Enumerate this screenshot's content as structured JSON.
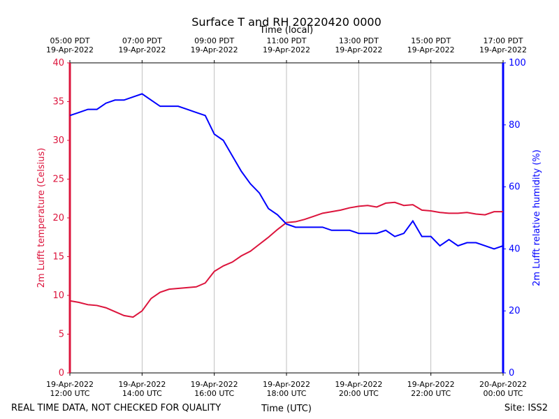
{
  "chart_data": {
    "type": "line",
    "title": "Surface T and RH 20220420 0000",
    "x_label": "Time (UTC)",
    "x2_label": "Time (local)",
    "y_label": "2m Lufft temperature (Celsius)",
    "y2_label": "2m Lufft relative humidity (%)",
    "footer_left": "REAL TIME DATA, NOT CHECKED FOR QUALITY",
    "footer_right": "Site: ISS2",
    "x": [
      "2022-04-19T12:00",
      "2022-04-19T12:15",
      "2022-04-19T12:30",
      "2022-04-19T12:45",
      "2022-04-19T13:00",
      "2022-04-19T13:15",
      "2022-04-19T13:30",
      "2022-04-19T13:45",
      "2022-04-19T14:00",
      "2022-04-19T14:15",
      "2022-04-19T14:30",
      "2022-04-19T14:45",
      "2022-04-19T15:00",
      "2022-04-19T15:15",
      "2022-04-19T15:30",
      "2022-04-19T15:45",
      "2022-04-19T16:00",
      "2022-04-19T16:15",
      "2022-04-19T16:30",
      "2022-04-19T16:45",
      "2022-04-19T17:00",
      "2022-04-19T17:15",
      "2022-04-19T17:30",
      "2022-04-19T17:45",
      "2022-04-19T18:00",
      "2022-04-19T18:15",
      "2022-04-19T18:30",
      "2022-04-19T18:45",
      "2022-04-19T19:00",
      "2022-04-19T19:15",
      "2022-04-19T19:30",
      "2022-04-19T19:45",
      "2022-04-19T20:00",
      "2022-04-19T20:15",
      "2022-04-19T20:30",
      "2022-04-19T20:45",
      "2022-04-19T21:00",
      "2022-04-19T21:15",
      "2022-04-19T21:30",
      "2022-04-19T21:45",
      "2022-04-19T22:00",
      "2022-04-19T22:15",
      "2022-04-19T22:30",
      "2022-04-19T22:45",
      "2022-04-19T23:00",
      "2022-04-19T23:15",
      "2022-04-19T23:30",
      "2022-04-19T23:45",
      "2022-04-20T00:00"
    ],
    "series": [
      {
        "name": "2m Lufft temperature",
        "color": "#dc143c",
        "axis": "y",
        "values": [
          9.3,
          9.1,
          8.8,
          8.7,
          8.4,
          7.9,
          7.4,
          7.2,
          8.0,
          9.6,
          10.4,
          10.8,
          10.9,
          11.0,
          11.1,
          11.6,
          13.1,
          13.8,
          14.3,
          15.1,
          15.7,
          16.6,
          17.5,
          18.5,
          19.4,
          19.5,
          19.8,
          20.2,
          20.6,
          20.8,
          21.0,
          21.3,
          21.5,
          21.6,
          21.4,
          21.9,
          22.0,
          21.6,
          21.7,
          21.0,
          20.9,
          20.7,
          20.6,
          20.6,
          20.7,
          20.5,
          20.4,
          20.8,
          20.8
        ]
      },
      {
        "name": "2m Lufft relative humidity",
        "color": "#0000ff",
        "axis": "y2",
        "values": [
          83,
          84,
          85,
          85,
          87,
          88,
          88,
          89,
          90,
          88,
          86,
          86,
          86,
          85,
          84,
          83,
          77,
          75,
          70,
          65,
          61,
          58,
          53,
          51,
          48,
          47,
          47,
          47,
          47,
          46,
          46,
          46,
          45,
          45,
          45,
          46,
          44,
          45,
          49,
          44,
          44,
          41,
          43,
          41,
          42,
          42,
          41,
          40,
          41
        ]
      }
    ],
    "xlim": [
      "2022-04-19T12:00",
      "2022-04-20T00:00"
    ],
    "xticks": [
      {
        "value": "2022-04-19T12:00",
        "label": "19-Apr-2022\n12:00 UTC"
      },
      {
        "value": "2022-04-19T14:00",
        "label": "19-Apr-2022\n14:00 UTC"
      },
      {
        "value": "2022-04-19T16:00",
        "label": "19-Apr-2022\n16:00 UTC"
      },
      {
        "value": "2022-04-19T18:00",
        "label": "19-Apr-2022\n18:00 UTC"
      },
      {
        "value": "2022-04-19T20:00",
        "label": "19-Apr-2022\n20:00 UTC"
      },
      {
        "value": "2022-04-19T22:00",
        "label": "19-Apr-2022\n22:00 UTC"
      },
      {
        "value": "2022-04-20T00:00",
        "label": "20-Apr-2022\n00:00 UTC"
      }
    ],
    "x2ticks": [
      {
        "value": "2022-04-19T12:00",
        "label": "05:00 PDT\n19-Apr-2022"
      },
      {
        "value": "2022-04-19T14:00",
        "label": "07:00 PDT\n19-Apr-2022"
      },
      {
        "value": "2022-04-19T16:00",
        "label": "09:00 PDT\n19-Apr-2022"
      },
      {
        "value": "2022-04-19T18:00",
        "label": "11:00 PDT\n19-Apr-2022"
      },
      {
        "value": "2022-04-19T20:00",
        "label": "13:00 PDT\n19-Apr-2022"
      },
      {
        "value": "2022-04-19T22:00",
        "label": "15:00 PDT\n19-Apr-2022"
      },
      {
        "value": "2022-04-20T00:00",
        "label": "17:00 PDT\n19-Apr-2022"
      }
    ],
    "ylim": [
      0,
      40
    ],
    "yticks": [
      0,
      5,
      10,
      15,
      20,
      25,
      30,
      35,
      40
    ],
    "y2lim": [
      0,
      100
    ],
    "y2ticks": [
      0,
      20,
      40,
      60,
      80,
      100
    ],
    "grid": "x"
  }
}
